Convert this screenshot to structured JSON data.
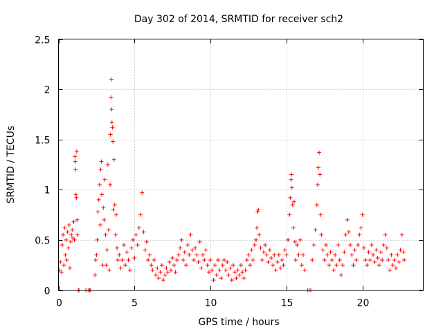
{
  "chart_data": {
    "type": "scatter",
    "title": "Day 302 of 2014, SRMTID for receiver sch2",
    "xlabel": "GPS time / hours",
    "ylabel": "SRMTID / TECUs",
    "xlim": [
      0,
      24
    ],
    "ylim": [
      0,
      2.5
    ],
    "x_ticks": [
      0,
      5,
      10,
      15,
      20
    ],
    "x_tick_labels": [
      "0",
      "5",
      "10",
      "15",
      "20"
    ],
    "y_ticks": [
      0,
      0.5,
      1,
      1.5,
      2,
      2.5
    ],
    "y_tick_labels": [
      "0",
      "0.5",
      "1",
      "1.5",
      "2",
      "2.5"
    ],
    "grid": true,
    "marker": "+",
    "marker_color": "#ff0000",
    "series": [
      {
        "name": "sch2",
        "points": [
          [
            0.05,
            0.2
          ],
          [
            0.12,
            0.28
          ],
          [
            0.2,
            0.18
          ],
          [
            0.25,
            0.45
          ],
          [
            0.3,
            0.55
          ],
          [
            0.35,
            0.25
          ],
          [
            0.4,
            0.62
          ],
          [
            0.45,
            0.35
          ],
          [
            0.5,
            0.5
          ],
          [
            0.55,
            0.3
          ],
          [
            0.6,
            0.58
          ],
          [
            0.65,
            0.42
          ],
          [
            0.7,
            0.65
          ],
          [
            0.75,
            0.22
          ],
          [
            0.8,
            0.48
          ],
          [
            0.85,
            0.55
          ],
          [
            0.9,
            0.6
          ],
          [
            0.95,
            0.52
          ],
          [
            1.0,
            0.68
          ],
          [
            1.05,
            0.5
          ],
          [
            1.08,
            1.33
          ],
          [
            1.1,
            1.28
          ],
          [
            1.12,
            1.2
          ],
          [
            1.15,
            0.95
          ],
          [
            1.18,
            0.92
          ],
          [
            1.2,
            1.38
          ],
          [
            1.22,
            0.7
          ],
          [
            1.25,
            0.55
          ],
          [
            1.3,
            0.0
          ],
          [
            1.35,
            0.0
          ],
          [
            1.8,
            0.0
          ],
          [
            1.95,
            0.0
          ],
          [
            2.05,
            0.0
          ],
          [
            2.1,
            0.0
          ],
          [
            2.4,
            0.15
          ],
          [
            2.45,
            0.3
          ],
          [
            2.5,
            0.35
          ],
          [
            2.55,
            0.5
          ],
          [
            2.6,
            0.78
          ],
          [
            2.65,
            0.9
          ],
          [
            2.7,
            1.05
          ],
          [
            2.75,
            0.65
          ],
          [
            2.78,
            1.2
          ],
          [
            2.82,
            1.28
          ],
          [
            2.85,
            0.95
          ],
          [
            2.9,
            0.25
          ],
          [
            2.95,
            0.82
          ],
          [
            3.0,
            0.7
          ],
          [
            3.05,
            1.1
          ],
          [
            3.1,
            0.55
          ],
          [
            3.15,
            0.25
          ],
          [
            3.2,
            0.4
          ],
          [
            3.25,
            1.25
          ],
          [
            3.3,
            0.6
          ],
          [
            3.35,
            0.2
          ],
          [
            3.4,
            1.05
          ],
          [
            3.42,
            1.55
          ],
          [
            3.45,
            1.92
          ],
          [
            3.48,
            2.1
          ],
          [
            3.5,
            1.8
          ],
          [
            3.52,
            1.67
          ],
          [
            3.55,
            1.62
          ],
          [
            3.58,
            1.48
          ],
          [
            3.6,
            0.8
          ],
          [
            3.65,
            1.3
          ],
          [
            3.7,
            0.85
          ],
          [
            3.75,
            0.55
          ],
          [
            3.8,
            0.75
          ],
          [
            3.85,
            0.42
          ],
          [
            3.9,
            0.3
          ],
          [
            4.0,
            0.35
          ],
          [
            4.1,
            0.22
          ],
          [
            4.2,
            0.3
          ],
          [
            4.3,
            0.45
          ],
          [
            4.4,
            0.25
          ],
          [
            4.5,
            0.38
          ],
          [
            4.6,
            0.3
          ],
          [
            4.7,
            0.2
          ],
          [
            4.8,
            0.42
          ],
          [
            4.9,
            0.5
          ],
          [
            5.0,
            0.32
          ],
          [
            5.1,
            0.55
          ],
          [
            5.2,
            0.45
          ],
          [
            5.3,
            0.62
          ],
          [
            5.4,
            0.75
          ],
          [
            5.5,
            0.97
          ],
          [
            5.6,
            0.58
          ],
          [
            5.7,
            0.4
          ],
          [
            5.8,
            0.48
          ],
          [
            5.9,
            0.3
          ],
          [
            6.0,
            0.35
          ],
          [
            6.1,
            0.25
          ],
          [
            6.2,
            0.2
          ],
          [
            6.3,
            0.3
          ],
          [
            6.4,
            0.15
          ],
          [
            6.5,
            0.22
          ],
          [
            6.6,
            0.12
          ],
          [
            6.7,
            0.18
          ],
          [
            6.8,
            0.25
          ],
          [
            6.9,
            0.1
          ],
          [
            7.0,
            0.15
          ],
          [
            7.1,
            0.22
          ],
          [
            7.2,
            0.18
          ],
          [
            7.3,
            0.28
          ],
          [
            7.4,
            0.2
          ],
          [
            7.5,
            0.32
          ],
          [
            7.6,
            0.25
          ],
          [
            7.7,
            0.18
          ],
          [
            7.8,
            0.3
          ],
          [
            7.9,
            0.35
          ],
          [
            8.0,
            0.42
          ],
          [
            8.1,
            0.5
          ],
          [
            8.2,
            0.3
          ],
          [
            8.3,
            0.38
          ],
          [
            8.4,
            0.25
          ],
          [
            8.5,
            0.45
          ],
          [
            8.6,
            0.35
          ],
          [
            8.7,
            0.55
          ],
          [
            8.8,
            0.4
          ],
          [
            8.9,
            0.3
          ],
          [
            9.0,
            0.42
          ],
          [
            9.1,
            0.35
          ],
          [
            9.2,
            0.28
          ],
          [
            9.3,
            0.48
          ],
          [
            9.4,
            0.22
          ],
          [
            9.5,
            0.35
          ],
          [
            9.6,
            0.3
          ],
          [
            9.7,
            0.4
          ],
          [
            9.8,
            0.25
          ],
          [
            9.9,
            0.18
          ],
          [
            10.0,
            0.3
          ],
          [
            10.1,
            0.2
          ],
          [
            10.2,
            0.1
          ],
          [
            10.3,
            0.25
          ],
          [
            10.4,
            0.15
          ],
          [
            10.5,
            0.3
          ],
          [
            10.6,
            0.2
          ],
          [
            10.7,
            0.12
          ],
          [
            10.8,
            0.25
          ],
          [
            10.9,
            0.3
          ],
          [
            11.0,
            0.2
          ],
          [
            11.1,
            0.28
          ],
          [
            11.2,
            0.15
          ],
          [
            11.3,
            0.22
          ],
          [
            11.4,
            0.1
          ],
          [
            11.5,
            0.25
          ],
          [
            11.6,
            0.18
          ],
          [
            11.7,
            0.12
          ],
          [
            11.8,
            0.2
          ],
          [
            11.9,
            0.15
          ],
          [
            12.0,
            0.25
          ],
          [
            12.1,
            0.18
          ],
          [
            12.2,
            0.12
          ],
          [
            12.3,
            0.2
          ],
          [
            12.4,
            0.3
          ],
          [
            12.5,
            0.35
          ],
          [
            12.6,
            0.25
          ],
          [
            12.7,
            0.4
          ],
          [
            12.8,
            0.3
          ],
          [
            12.9,
            0.45
          ],
          [
            13.0,
            0.5
          ],
          [
            13.05,
            0.62
          ],
          [
            13.1,
            0.78
          ],
          [
            13.15,
            0.8
          ],
          [
            13.2,
            0.55
          ],
          [
            13.3,
            0.42
          ],
          [
            13.4,
            0.3
          ],
          [
            13.5,
            0.38
          ],
          [
            13.6,
            0.45
          ],
          [
            13.7,
            0.35
          ],
          [
            13.8,
            0.28
          ],
          [
            13.9,
            0.4
          ],
          [
            14.0,
            0.32
          ],
          [
            14.1,
            0.25
          ],
          [
            14.2,
            0.35
          ],
          [
            14.3,
            0.2
          ],
          [
            14.4,
            0.28
          ],
          [
            14.5,
            0.35
          ],
          [
            14.6,
            0.22
          ],
          [
            14.7,
            0.3
          ],
          [
            14.8,
            0.25
          ],
          [
            14.9,
            0.4
          ],
          [
            15.0,
            0.35
          ],
          [
            15.1,
            0.5
          ],
          [
            15.2,
            0.75
          ],
          [
            15.25,
            0.92
          ],
          [
            15.3,
            1.1
          ],
          [
            15.33,
            1.15
          ],
          [
            15.36,
            1.02
          ],
          [
            15.4,
            0.85
          ],
          [
            15.45,
            0.62
          ],
          [
            15.5,
            0.88
          ],
          [
            15.55,
            0.48
          ],
          [
            15.6,
            0.3
          ],
          [
            15.7,
            0.45
          ],
          [
            15.8,
            0.35
          ],
          [
            15.9,
            0.5
          ],
          [
            16.0,
            0.25
          ],
          [
            16.1,
            0.35
          ],
          [
            16.2,
            0.2
          ],
          [
            16.4,
            0.0
          ],
          [
            16.5,
            0.0
          ],
          [
            16.6,
            0.0
          ],
          [
            16.7,
            0.3
          ],
          [
            16.8,
            0.45
          ],
          [
            16.9,
            0.6
          ],
          [
            17.0,
            0.85
          ],
          [
            17.05,
            1.05
          ],
          [
            17.1,
            1.22
          ],
          [
            17.15,
            1.37
          ],
          [
            17.2,
            1.15
          ],
          [
            17.25,
            0.75
          ],
          [
            17.3,
            0.55
          ],
          [
            17.4,
            0.4
          ],
          [
            17.5,
            0.3
          ],
          [
            17.6,
            0.45
          ],
          [
            17.7,
            0.35
          ],
          [
            17.8,
            0.25
          ],
          [
            17.9,
            0.38
          ],
          [
            18.0,
            0.3
          ],
          [
            18.1,
            0.2
          ],
          [
            18.2,
            0.35
          ],
          [
            18.3,
            0.25
          ],
          [
            18.4,
            0.45
          ],
          [
            18.5,
            0.3
          ],
          [
            18.6,
            0.15
          ],
          [
            18.7,
            0.25
          ],
          [
            18.8,
            0.38
          ],
          [
            18.9,
            0.55
          ],
          [
            19.0,
            0.7
          ],
          [
            19.1,
            0.58
          ],
          [
            19.2,
            0.45
          ],
          [
            19.3,
            0.35
          ],
          [
            19.4,
            0.25
          ],
          [
            19.5,
            0.4
          ],
          [
            19.6,
            0.3
          ],
          [
            19.7,
            0.45
          ],
          [
            19.8,
            0.55
          ],
          [
            19.9,
            0.62
          ],
          [
            20.0,
            0.75
          ],
          [
            20.1,
            0.42
          ],
          [
            20.2,
            0.3
          ],
          [
            20.3,
            0.25
          ],
          [
            20.4,
            0.38
          ],
          [
            20.5,
            0.3
          ],
          [
            20.6,
            0.45
          ],
          [
            20.7,
            0.35
          ],
          [
            20.8,
            0.28
          ],
          [
            20.9,
            0.4
          ],
          [
            21.0,
            0.32
          ],
          [
            21.1,
            0.25
          ],
          [
            21.2,
            0.38
          ],
          [
            21.3,
            0.3
          ],
          [
            21.4,
            0.45
          ],
          [
            21.5,
            0.55
          ],
          [
            21.6,
            0.42
          ],
          [
            21.7,
            0.3
          ],
          [
            21.8,
            0.2
          ],
          [
            21.9,
            0.35
          ],
          [
            22.0,
            0.25
          ],
          [
            22.1,
            0.3
          ],
          [
            22.2,
            0.22
          ],
          [
            22.3,
            0.35
          ],
          [
            22.4,
            0.28
          ],
          [
            22.5,
            0.4
          ],
          [
            22.6,
            0.55
          ],
          [
            22.7,
            0.38
          ],
          [
            22.75,
            0.3
          ]
        ]
      }
    ]
  }
}
